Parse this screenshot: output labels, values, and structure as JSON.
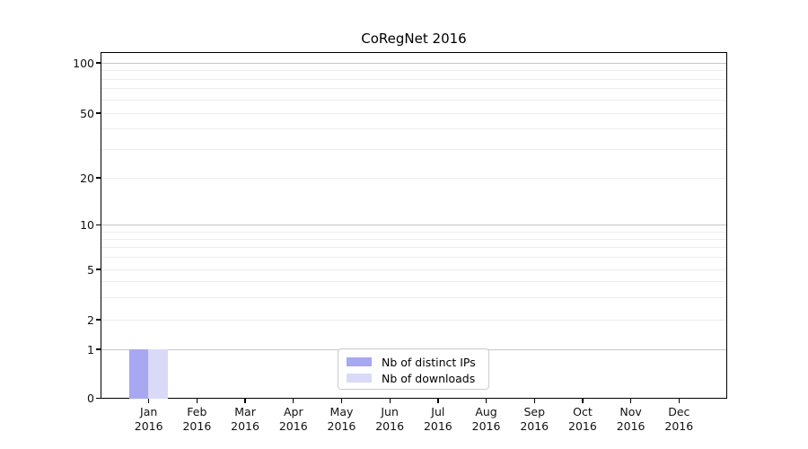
{
  "chart_data": {
    "type": "bar",
    "title": "CoRegNet 2016",
    "xlabel": "",
    "ylabel": "",
    "categories": [
      "Jan 2016",
      "Feb 2016",
      "Mar 2016",
      "Apr 2016",
      "May 2016",
      "Jun 2016",
      "Jul 2016",
      "Aug 2016",
      "Sep 2016",
      "Oct 2016",
      "Nov 2016",
      "Dec 2016"
    ],
    "series": [
      {
        "name": "Nb of distinct IPs",
        "color": "#a7a7f2",
        "values": [
          1,
          0,
          0,
          0,
          0,
          0,
          0,
          0,
          0,
          0,
          0,
          0
        ]
      },
      {
        "name": "Nb of downloads",
        "color": "#d9d9f8",
        "values": [
          1,
          0,
          0,
          0,
          0,
          0,
          0,
          0,
          0,
          0,
          0,
          0
        ]
      }
    ],
    "yticks": [
      0,
      1,
      2,
      5,
      10,
      20,
      50,
      100
    ],
    "minor_grid_values": [
      3,
      4,
      6,
      7,
      8,
      9,
      30,
      40,
      60,
      70,
      80,
      90
    ],
    "major_grid_values": [
      1,
      10,
      100
    ],
    "scale": "log (linear below 1)",
    "ylim": [
      0,
      113
    ],
    "grid": true,
    "legend_position": "bottom-center",
    "colors": {
      "major_grid": "#c7c7c7",
      "minor_grid": "#ededed",
      "spine": "#000000",
      "text": "#111111"
    }
  }
}
